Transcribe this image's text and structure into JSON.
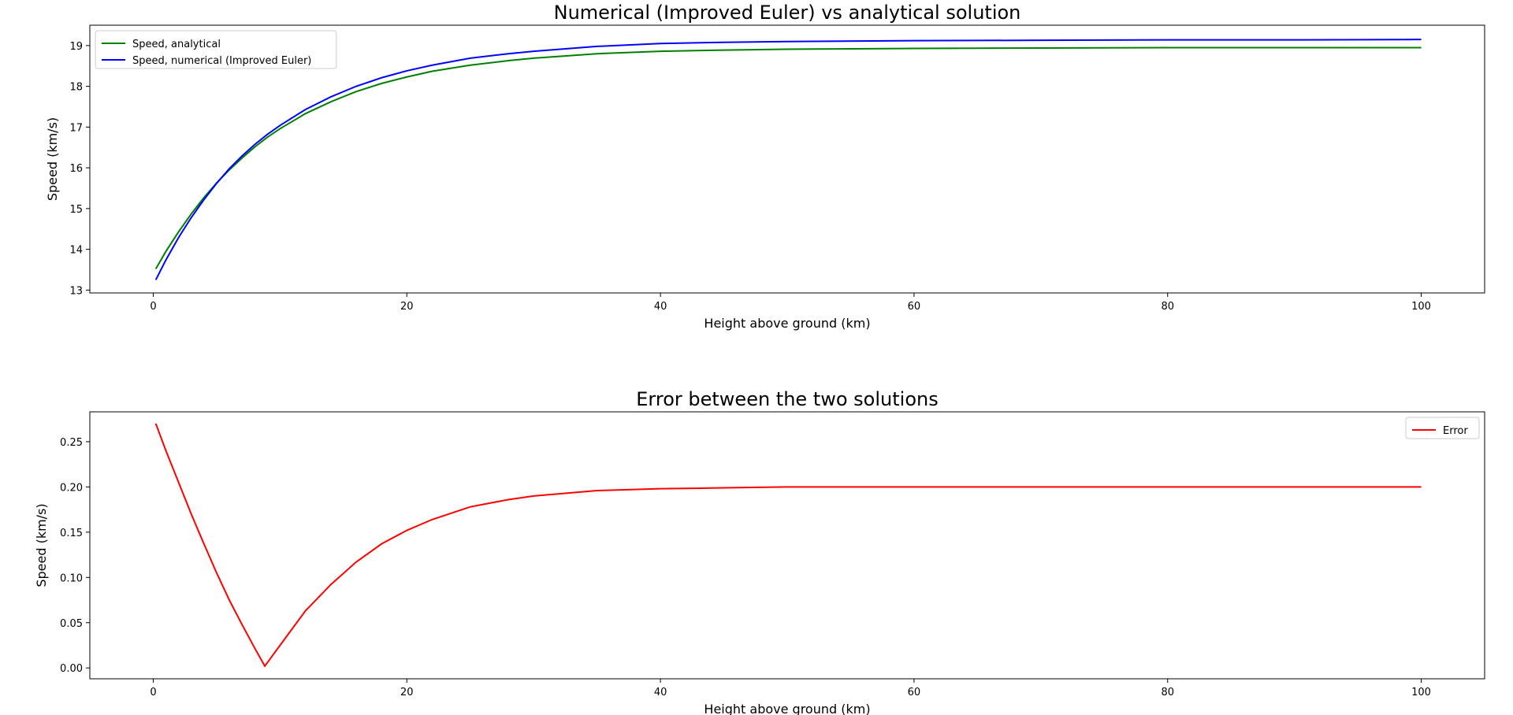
{
  "chart_data": [
    {
      "type": "line",
      "title": "Numerical (Improved Euler) vs analytical solution",
      "xlabel": "Height above ground (km)",
      "ylabel": "Speed (km/s)",
      "xlim": [
        -5,
        105
      ],
      "ylim": [
        12.93,
        19.5
      ],
      "xticks": [
        0,
        20,
        40,
        60,
        80,
        100
      ],
      "yticks": [
        13,
        14,
        15,
        16,
        17,
        18,
        19
      ],
      "grid": false,
      "legend": "upper left",
      "series": [
        {
          "name": "Speed, analytical",
          "color": "#008000",
          "x": [
            0.2,
            1,
            2,
            3,
            4,
            5,
            6,
            7,
            8,
            9,
            10,
            12,
            14,
            16,
            18,
            20,
            22,
            25,
            28,
            30,
            35,
            40,
            45,
            50,
            60,
            70,
            80,
            90,
            100
          ],
          "y": [
            13.52,
            13.95,
            14.43,
            14.87,
            15.27,
            15.63,
            15.95,
            16.24,
            16.51,
            16.75,
            16.96,
            17.33,
            17.62,
            17.87,
            18.07,
            18.23,
            18.37,
            18.52,
            18.63,
            18.69,
            18.8,
            18.86,
            18.89,
            18.91,
            18.93,
            18.94,
            18.95,
            18.95,
            18.95
          ]
        },
        {
          "name": "Speed, numerical (Improved Euler)",
          "color": "#0000ff",
          "x": [
            0.2,
            1,
            2,
            3,
            4,
            5,
            6,
            7,
            8,
            9,
            10,
            12,
            14,
            16,
            18,
            20,
            22,
            25,
            28,
            30,
            35,
            40,
            45,
            50,
            60,
            70,
            80,
            90,
            100
          ],
          "y": [
            13.25,
            13.74,
            14.29,
            14.78,
            15.22,
            15.62,
            15.98,
            16.29,
            16.57,
            16.82,
            17.04,
            17.43,
            17.74,
            18.0,
            18.21,
            18.38,
            18.52,
            18.69,
            18.8,
            18.86,
            18.98,
            19.05,
            19.08,
            19.1,
            19.12,
            19.13,
            19.14,
            19.14,
            19.15
          ]
        }
      ]
    },
    {
      "type": "line",
      "title": "Error between the two solutions",
      "xlabel": "Height above ground (km)",
      "ylabel": "Speed (km/s)",
      "xlim": [
        -5,
        105
      ],
      "ylim": [
        -0.012,
        0.283
      ],
      "xticks": [
        0,
        20,
        40,
        60,
        80,
        100
      ],
      "yticks": [
        0.0,
        0.05,
        0.1,
        0.15,
        0.2,
        0.25
      ],
      "ytick_labels": [
        "0.00",
        "0.05",
        "0.10",
        "0.15",
        "0.20",
        "0.25"
      ],
      "grid": false,
      "legend": "upper right",
      "series": [
        {
          "name": "Error",
          "color": "#ff0000",
          "x": [
            0.2,
            1,
            2,
            3,
            4,
            5,
            6,
            7,
            8,
            8.8,
            10,
            12,
            14,
            16,
            18,
            20,
            22,
            25,
            28,
            30,
            35,
            40,
            45,
            50,
            60,
            70,
            80,
            90,
            100
          ],
          "y": [
            0.27,
            0.24,
            0.205,
            0.17,
            0.137,
            0.105,
            0.075,
            0.048,
            0.022,
            0.002,
            0.025,
            0.063,
            0.092,
            0.117,
            0.137,
            0.152,
            0.164,
            0.178,
            0.186,
            0.19,
            0.196,
            0.198,
            0.199,
            0.2,
            0.2,
            0.2,
            0.2,
            0.2,
            0.2
          ]
        }
      ]
    }
  ]
}
